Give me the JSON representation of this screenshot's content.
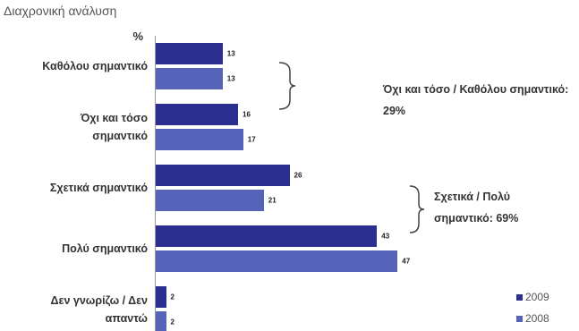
{
  "chart_data": {
    "type": "bar",
    "orientation": "horizontal",
    "title": "Διαχρονική ανάλυση",
    "axis_label": "%",
    "categories": [
      "Καθόλου σημαντικό",
      "Όχι και τόσο σημαντικό",
      "Σχετικά σημαντικό",
      "Πολύ σημαντικό",
      "Δεν γνωρίζω / Δεν απαντώ"
    ],
    "series": [
      {
        "name": "2009",
        "color": "#2b2f8f",
        "values": [
          13,
          16,
          26,
          43,
          2
        ]
      },
      {
        "name": "2008",
        "color": "#5563b9",
        "values": [
          13,
          17,
          21,
          47,
          2
        ]
      }
    ],
    "annotations": [
      "Όχι και τόσο / Καθόλου σημαντικό: 29%",
      "Σχετικά / Πολύ σημαντικό: 69%"
    ]
  }
}
